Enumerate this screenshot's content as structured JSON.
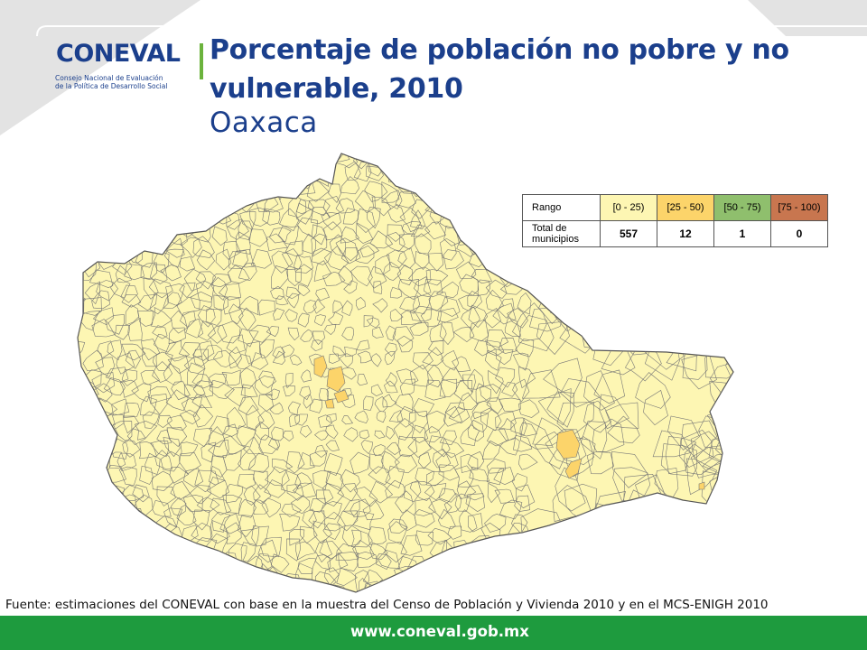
{
  "logo": {
    "word": "CONEVAL",
    "line1": "Consejo Nacional de Evaluación",
    "line2": "de la Política de Desarrollo Social"
  },
  "title": "Porcentaje de población no pobre y no vulnerable, 2010",
  "subtitle": "Oaxaca",
  "legend": {
    "header_label": "Rango",
    "count_label": "Total de municipios",
    "ranges": [
      {
        "label": "[0 - 25)",
        "count": "557",
        "color": "#fdf6b3"
      },
      {
        "label": "[25 - 50)",
        "count": "12",
        "color": "#fcd46a"
      },
      {
        "label": "[50 - 75)",
        "count": "1",
        "color": "#8fbf6d"
      },
      {
        "label": "[75 - 100)",
        "count": "0",
        "color": "#c8764f"
      }
    ]
  },
  "colors": {
    "map_fill": "#fdf6b3",
    "map_highlight": "#fcd46a",
    "title": "#1b3f8c",
    "footer": "#1e9b3e"
  },
  "source": "Fuente: estimaciones del CONEVAL con base en la muestra del Censo de Población y Vivienda 2010 y en el MCS-ENIGH 2010",
  "footer": {
    "url": "www.coneval.gob.mx"
  }
}
